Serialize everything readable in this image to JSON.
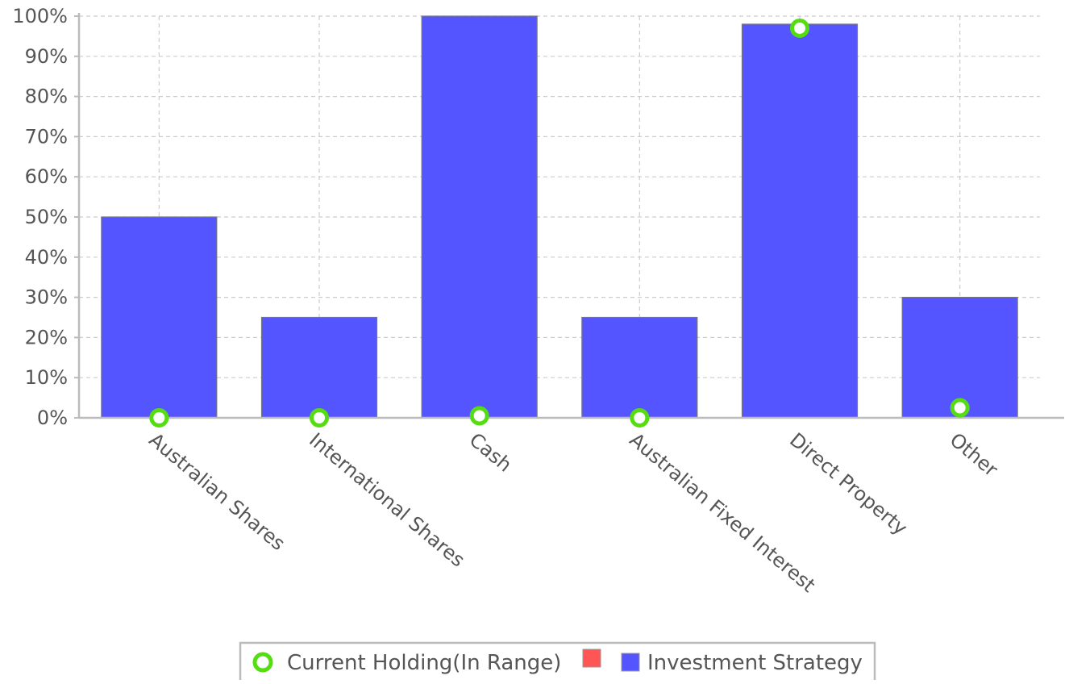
{
  "chart_data": {
    "type": "bar",
    "title": "",
    "xlabel": "",
    "ylabel": "",
    "ylim": [
      0,
      100
    ],
    "y_unit": "%",
    "y_ticks": [
      "0%",
      "10%",
      "20%",
      "30%",
      "40%",
      "50%",
      "60%",
      "70%",
      "80%",
      "90%",
      "100%"
    ],
    "grid": true,
    "categories": [
      "Australian Shares",
      "International Shares",
      "Cash",
      "Australian Fixed Interest",
      "Direct Property",
      "Other"
    ],
    "series": [
      {
        "name": "Investment Strategy",
        "kind": "bar",
        "color": "#5555ff",
        "values": [
          50,
          25,
          100,
          25,
          98,
          30
        ]
      },
      {
        "name": "Current Holding(In Range)",
        "kind": "marker",
        "color": "#55dd11",
        "values": [
          0,
          0,
          0.5,
          0,
          97,
          2.5
        ]
      }
    ],
    "legend": {
      "placement": "bottom-center",
      "items": [
        {
          "label": "Current Holding(In Range)",
          "symbol": "ring",
          "color": "#55dd11"
        },
        {
          "label": "",
          "symbol": "square",
          "color": "#ff5555"
        },
        {
          "label": "Investment Strategy",
          "symbol": "square",
          "color": "#5555ff"
        }
      ]
    }
  }
}
